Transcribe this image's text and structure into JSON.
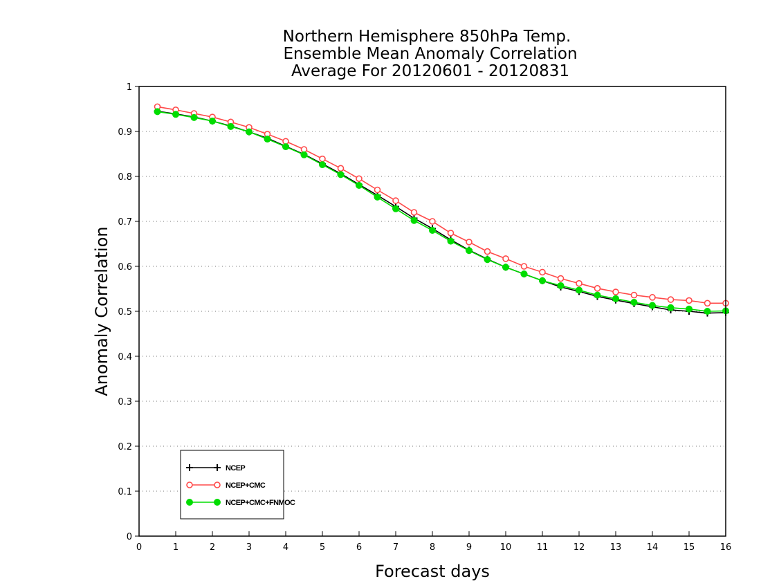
{
  "chart_data": {
    "type": "line",
    "title": [
      "Northern Hemisphere 850hPa Temp.",
      "Ensemble Mean Anomaly Correlation",
      "Average For 20120601 - 20120831"
    ],
    "xlabel": "Forecast days",
    "ylabel": "Anomaly Correlation",
    "xlim": [
      0,
      16
    ],
    "ylim": [
      0,
      1
    ],
    "xticks": [
      0,
      1,
      2,
      3,
      4,
      5,
      6,
      7,
      8,
      9,
      10,
      11,
      12,
      13,
      14,
      15,
      16
    ],
    "yticks": [
      0,
      0.1,
      0.2,
      0.3,
      0.4,
      0.5,
      0.6,
      0.7,
      0.8,
      0.9,
      1
    ],
    "ytick_labels": [
      "0",
      "0.1",
      "0.2",
      "0.3",
      "0.4",
      "0.5",
      "0.6",
      "0.7",
      "0.8",
      "0.9",
      "1"
    ],
    "grid": "horizontal-dotted",
    "legend_position": "bottom-left",
    "x": [
      0.5,
      1.0,
      1.5,
      2.0,
      2.5,
      3.0,
      3.5,
      4.0,
      4.5,
      5.0,
      5.5,
      6.0,
      6.5,
      7.0,
      7.5,
      8.0,
      8.5,
      9.0,
      9.5,
      10.0,
      10.5,
      11.0,
      11.5,
      12.0,
      12.5,
      13.0,
      13.5,
      14.0,
      14.5,
      15.0,
      15.5,
      16.0
    ],
    "series": [
      {
        "name": "NCEP",
        "color": "#000000",
        "marker": "plus",
        "values": [
          0.945,
          0.939,
          0.932,
          0.923,
          0.912,
          0.899,
          0.885,
          0.867,
          0.849,
          0.828,
          0.806,
          0.782,
          0.758,
          0.733,
          0.707,
          0.684,
          0.659,
          0.636,
          0.616,
          0.598,
          0.583,
          0.568,
          0.554,
          0.544,
          0.533,
          0.525,
          0.517,
          0.51,
          0.503,
          0.5,
          0.496,
          0.497
        ]
      },
      {
        "name": "NCEP+CMC",
        "color": "#ff4a4a",
        "marker": "open-circle",
        "values": [
          0.955,
          0.948,
          0.94,
          0.932,
          0.921,
          0.909,
          0.894,
          0.878,
          0.86,
          0.839,
          0.818,
          0.795,
          0.77,
          0.746,
          0.72,
          0.7,
          0.674,
          0.654,
          0.633,
          0.617,
          0.6,
          0.587,
          0.573,
          0.562,
          0.551,
          0.543,
          0.536,
          0.531,
          0.526,
          0.524,
          0.518,
          0.518
        ]
      },
      {
        "name": "NCEP+CMC+FNMOC",
        "color": "#00dd00",
        "marker": "filled-circle",
        "values": [
          0.944,
          0.938,
          0.931,
          0.923,
          0.911,
          0.899,
          0.883,
          0.866,
          0.848,
          0.826,
          0.804,
          0.78,
          0.754,
          0.728,
          0.702,
          0.68,
          0.656,
          0.635,
          0.615,
          0.598,
          0.583,
          0.568,
          0.557,
          0.547,
          0.536,
          0.528,
          0.52,
          0.513,
          0.508,
          0.505,
          0.5,
          0.501
        ]
      }
    ]
  }
}
